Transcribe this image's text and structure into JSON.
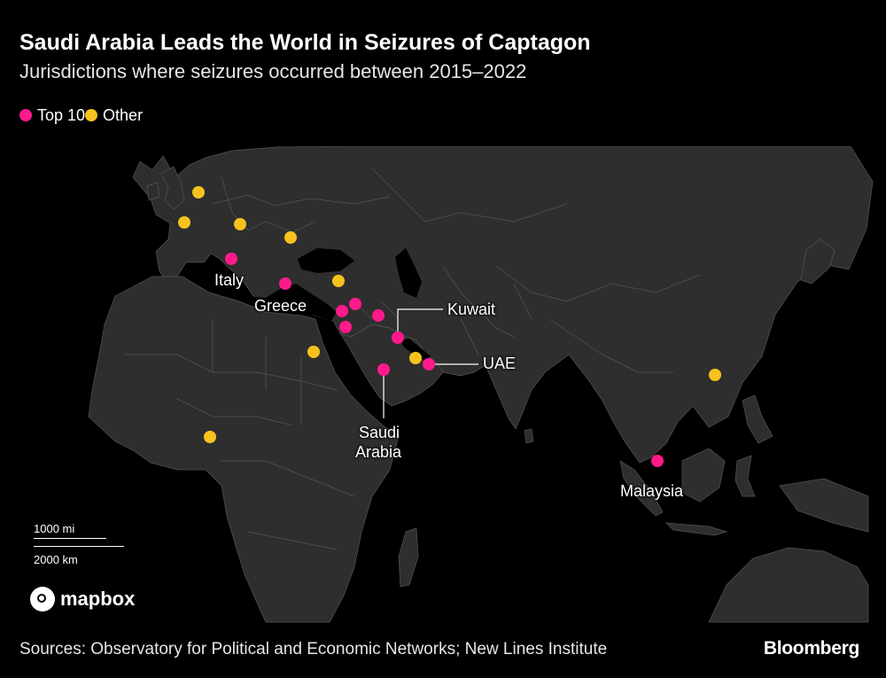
{
  "header": {
    "title": "Saudi Arabia Leads the World in Seizures of Captagon",
    "subtitle": "Jurisdictions where seizures occurred between 2015–2022"
  },
  "legend": {
    "items": [
      {
        "label": "Top 10",
        "color": "#ff1a8c"
      },
      {
        "label": "Other",
        "color": "#f7c21e"
      }
    ]
  },
  "map": {
    "labels": {
      "italy": "Italy",
      "greece": "Greece",
      "kuwait": "Kuwait",
      "uae": "UAE",
      "saudi_line1": "Saudi",
      "saudi_line2": "Arabia",
      "malaysia": "Malaysia"
    },
    "scale": {
      "miles": "1000 mi",
      "km": "2000 km"
    },
    "attribution_logo": "mapbox"
  },
  "footer": {
    "source": "Sources: Observatory for Political and Economic Networks; New Lines Institute",
    "brand": "Bloomberg"
  }
}
